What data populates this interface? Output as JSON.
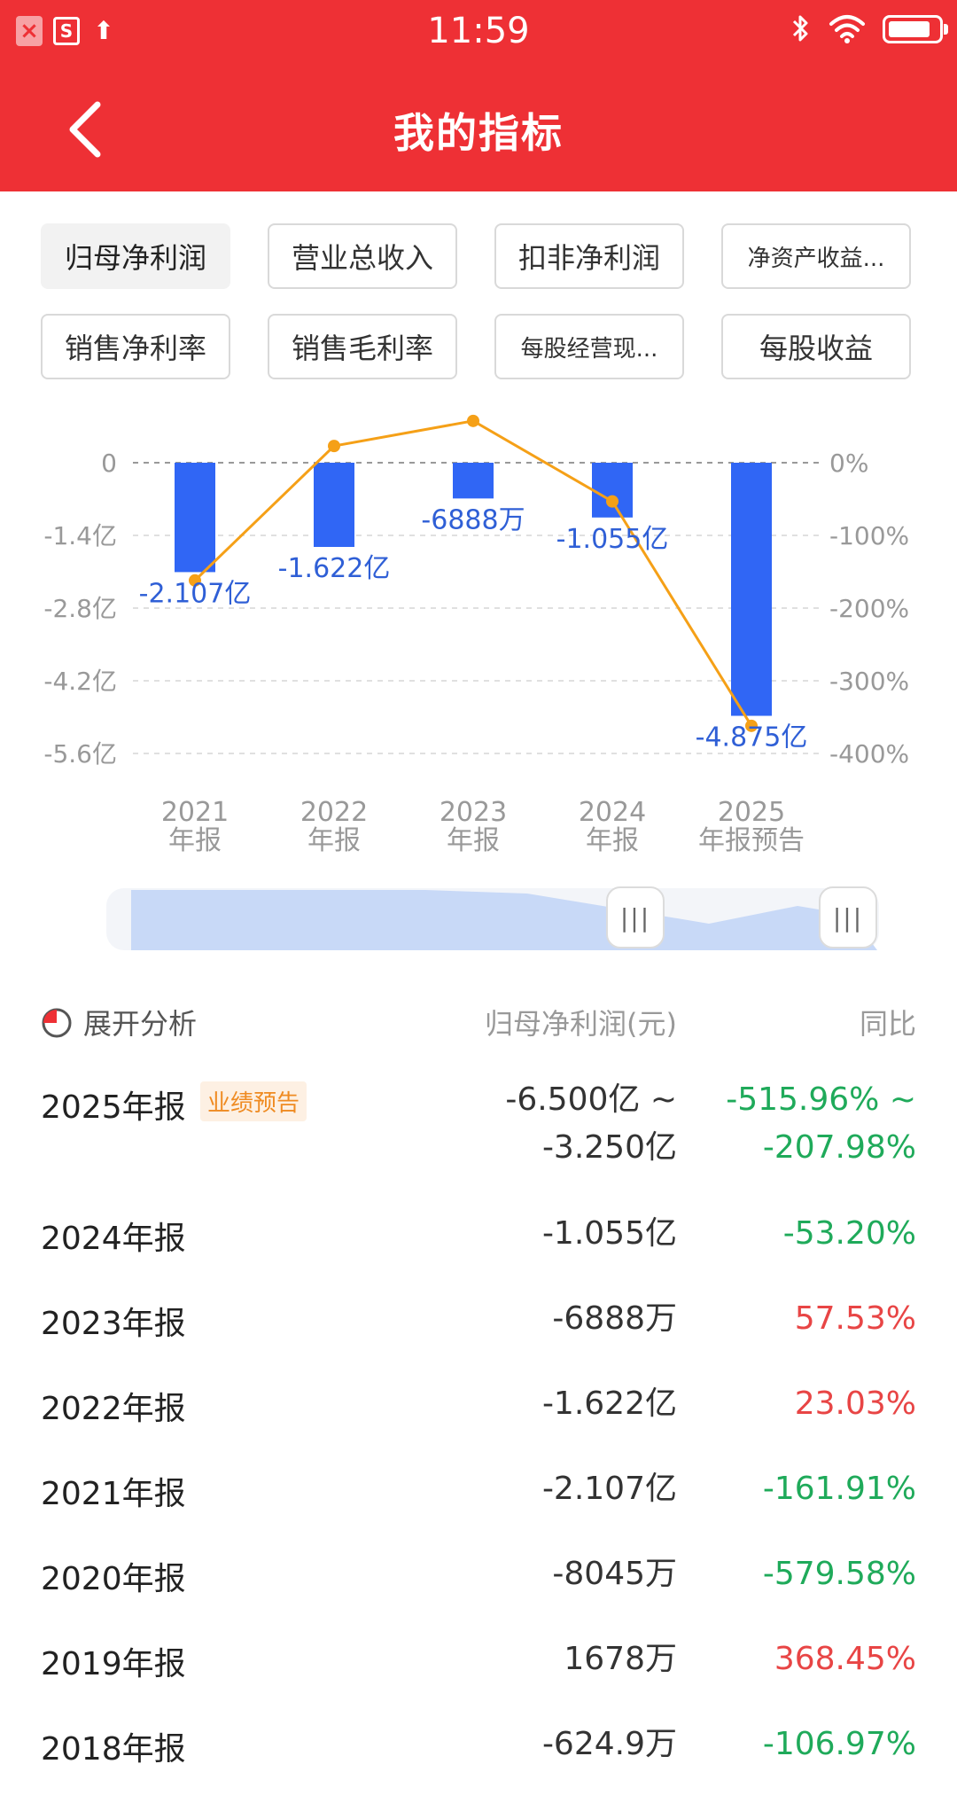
{
  "status_bar": {
    "time": "11:59",
    "battery_level": 0.85
  },
  "header": {
    "title": "我的指标"
  },
  "tabs": [
    {
      "label": "归母净利润",
      "active": true
    },
    {
      "label": "营业总收入",
      "active": false
    },
    {
      "label": "扣非净利润",
      "active": false
    },
    {
      "label": "净资产收益...",
      "active": false
    },
    {
      "label": "销售净利率",
      "active": false
    },
    {
      "label": "销售毛利率",
      "active": false
    },
    {
      "label": "每股经营现...",
      "active": false
    },
    {
      "label": "每股收益",
      "active": false
    }
  ],
  "colors": {
    "brand_red": "#ee3035",
    "bar_blue": "#3066f5",
    "line_orange": "#f5a017",
    "up": "#e84545",
    "down": "#1faa5a"
  },
  "chart_data": {
    "type": "bar",
    "categories": [
      "2021 年报",
      "2022 年报",
      "2023 年报",
      "2024 年报",
      "2025 年报预告"
    ],
    "category_lines": [
      [
        "2021",
        "年报"
      ],
      [
        "2022",
        "年报"
      ],
      [
        "2023",
        "年报"
      ],
      [
        "2024",
        "年报"
      ],
      [
        "2025",
        "年报预告"
      ]
    ],
    "series": [
      {
        "values_yi": [
          -2.107,
          -1.622,
          -0.6888,
          -1.055,
          -4.875
        ],
        "labels": [
          "-2.107亿",
          "-1.622亿",
          "-6888万",
          "-1.055亿",
          "-4.875亿"
        ],
        "axis": "left",
        "type": "bar"
      },
      {
        "values_pct": [
          -161.91,
          23.03,
          57.53,
          -53.2,
          -361.97
        ],
        "axis": "right",
        "type": "line"
      }
    ],
    "left_axis": {
      "ticks": [
        0,
        -1.4,
        -2.8,
        -4.2,
        -5.6
      ],
      "tick_labels": [
        "0",
        "-1.4亿",
        "-2.8亿",
        "-4.2亿",
        "-5.6亿"
      ],
      "range": [
        -5.6,
        1.4
      ]
    },
    "right_axis": {
      "ticks": [
        0,
        -100,
        -200,
        -300,
        -400
      ],
      "tick_labels": [
        "0%",
        "-100%",
        "-200%",
        "-300%",
        "-400%"
      ],
      "range": [
        -400,
        100
      ]
    },
    "grid": true
  },
  "table": {
    "expand_label": "展开分析",
    "col_value": "归母净利润(元)",
    "col_yoy": "同比",
    "rows": [
      {
        "period": "2025年报",
        "badge": "业绩预告",
        "value_lines": [
          "-6.500亿 ~",
          "-3.250亿"
        ],
        "yoy_lines": [
          "-515.96% ~",
          "-207.98%"
        ],
        "trend": "down"
      },
      {
        "period": "2024年报",
        "value": "-1.055亿",
        "yoy": "-53.20%",
        "trend": "down"
      },
      {
        "period": "2023年报",
        "value": "-6888万",
        "yoy": "57.53%",
        "trend": "up"
      },
      {
        "period": "2022年报",
        "value": "-1.622亿",
        "yoy": "23.03%",
        "trend": "up"
      },
      {
        "period": "2021年报",
        "value": "-2.107亿",
        "yoy": "-161.91%",
        "trend": "down"
      },
      {
        "period": "2020年报",
        "value": "-8045万",
        "yoy": "-579.58%",
        "trend": "down"
      },
      {
        "period": "2019年报",
        "value": "1678万",
        "yoy": "368.45%",
        "trend": "up"
      },
      {
        "period": "2018年报",
        "value": "-624.9万",
        "yoy": "-106.97%",
        "trend": "down"
      }
    ]
  }
}
